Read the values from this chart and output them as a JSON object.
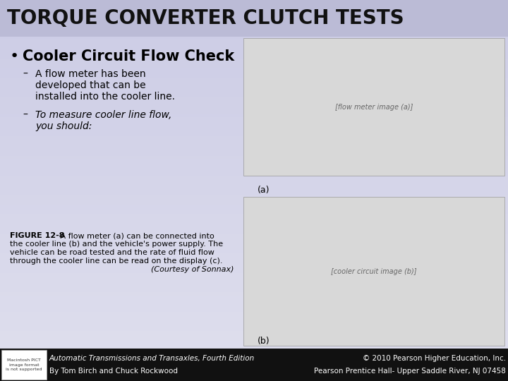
{
  "title": "TORQUE CONVERTER CLUTCH TESTS",
  "title_fontsize": 20,
  "title_color": "#111111",
  "bg_color": "#c8c8e0",
  "footer_bg": "#111111",
  "bullet_header": "Cooler Circuit Flow Check",
  "bullet_header_fontsize": 15,
  "sub_bullet1_line1": "A flow meter has been",
  "sub_bullet1_line2": "developed that can be",
  "sub_bullet1_line3": "installed into the cooler line.",
  "sub_bullet2_line1": "To measure cooler line flow,",
  "sub_bullet2_line2": "you should:",
  "figure_caption_bold": "FIGURE 12-8",
  "figure_caption_rest": " A flow meter (a) can be connected into\nthe cooler line (b) and the vehicle's power supply. The\nvehicle can be road tested and the rate of fluid flow\nthrough the cooler line can be read on the display (c).",
  "figure_caption_italic": "(Courtesy of Sonnax)",
  "footer_left_line1": "Automatic Transmissions and Transaxles, Fourth Edition",
  "footer_left_line2": "By Tom Birch and Chuck Rockwood",
  "footer_right_line1": "© 2010 Pearson Higher Education, Inc.",
  "footer_right_line2": "Pearson Prentice Hall- Upper Saddle River, NJ 07458",
  "footer_text_color": "#ffffff",
  "footer_fontsize": 7.5,
  "main_text_fontsize": 10,
  "caption_fontsize": 8,
  "image_a_label": "(a)",
  "image_b_label": "(b)"
}
